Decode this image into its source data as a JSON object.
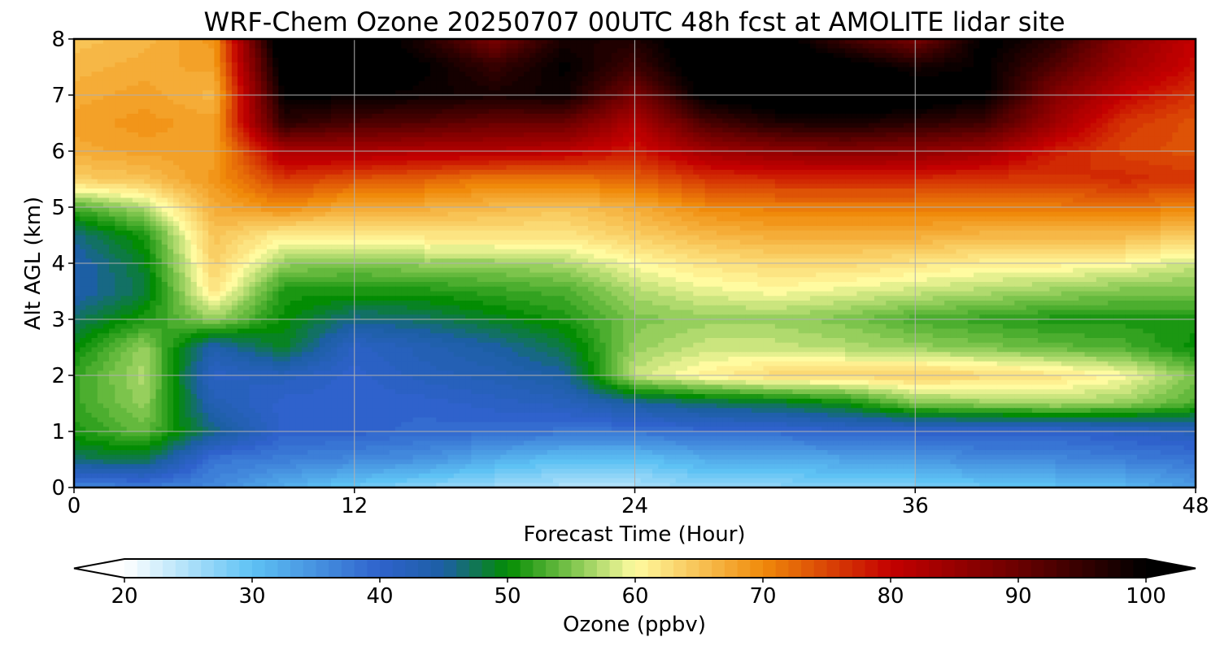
{
  "chart_data": {
    "type": "heatmap",
    "title": "WRF-Chem Ozone  20250707 00UTC 48h fcst at AMOLITE lidar site",
    "xlabel": "Forecast Time (Hour)",
    "ylabel": "Alt AGL (km)",
    "xlim": [
      0,
      48
    ],
    "ylim": [
      0,
      8
    ],
    "xticks": [
      "0",
      "12",
      "24",
      "36",
      "48"
    ],
    "yticks": [
      "0",
      "1",
      "2",
      "3",
      "4",
      "5",
      "6",
      "7",
      "8"
    ],
    "grid": true,
    "x": [
      0,
      3,
      6,
      9,
      12,
      15,
      18,
      21,
      24,
      27,
      30,
      33,
      36,
      39,
      42,
      45,
      48
    ],
    "y": [
      0,
      0.5,
      1,
      1.5,
      2,
      2.5,
      3,
      3.5,
      4,
      4.5,
      5,
      5.5,
      6,
      6.5,
      7,
      7.5,
      8
    ],
    "z": [
      [
        36,
        37,
        36,
        32,
        29,
        27,
        26,
        25,
        25,
        27,
        27,
        28,
        28,
        29,
        30,
        31,
        34
      ],
      [
        47,
        48,
        38,
        37,
        36,
        35,
        32,
        30,
        30,
        32,
        32,
        33,
        34,
        36,
        36,
        37,
        38
      ],
      [
        51,
        54,
        46,
        40,
        40,
        39,
        39,
        38,
        38,
        39,
        39,
        40,
        40,
        40,
        40,
        41,
        42
      ],
      [
        52,
        56,
        43,
        40,
        40,
        40,
        41,
        42,
        45,
        47,
        48,
        50,
        55,
        56,
        57,
        56,
        53
      ],
      [
        52,
        57,
        41,
        42,
        40,
        42,
        43,
        45,
        58,
        61,
        63,
        63,
        64,
        63,
        62,
        60,
        55
      ],
      [
        50,
        56,
        44,
        49,
        41,
        43,
        45,
        48,
        56,
        58,
        58,
        57,
        56,
        55,
        54,
        53,
        50
      ],
      [
        47,
        51,
        56,
        50,
        46,
        47,
        49,
        51,
        55,
        56,
        56,
        55,
        53,
        52,
        51,
        51,
        51
      ],
      [
        44,
        48,
        62,
        51,
        51,
        51,
        52,
        53,
        57,
        59,
        60,
        59,
        58,
        57,
        56,
        55,
        55
      ],
      [
        44,
        49,
        64,
        56,
        55,
        56,
        56,
        57,
        60,
        62,
        63,
        63,
        62,
        61,
        61,
        60,
        58
      ],
      [
        46,
        51,
        65,
        61,
        61,
        62,
        62,
        62,
        64,
        66,
        67,
        67,
        67,
        66,
        66,
        66,
        64
      ],
      [
        53,
        57,
        67,
        70,
        67,
        67,
        66,
        65,
        67,
        70,
        71,
        71,
        71,
        71,
        71,
        72,
        70
      ],
      [
        64,
        65,
        69,
        76,
        74,
        73,
        71,
        71,
        73,
        76,
        77,
        77,
        77,
        76,
        76,
        77,
        76
      ],
      [
        67,
        68,
        68,
        83,
        83,
        82,
        82,
        81,
        78,
        84,
        86,
        87,
        86,
        84,
        78,
        75,
        74
      ],
      [
        68,
        69,
        68,
        96,
        93,
        92,
        90,
        90,
        82,
        93,
        97,
        98,
        96,
        94,
        84,
        76,
        74
      ],
      [
        67,
        68,
        66,
        100,
        100,
        99,
        98,
        99,
        88,
        101,
        103,
        104,
        103,
        100,
        87,
        80,
        76
      ],
      [
        66,
        67,
        68,
        103,
        102,
        100,
        95,
        100,
        94,
        103,
        104,
        102,
        98,
        100,
        92,
        84,
        79
      ],
      [
        65,
        66,
        69,
        106,
        104,
        97,
        88,
        98,
        97,
        104,
        102,
        94,
        88,
        101,
        96,
        86,
        80
      ]
    ],
    "colorbar": {
      "label": "Ozone  (ppbv)",
      "min": 20,
      "max": 100,
      "ticks": [
        "20",
        "30",
        "40",
        "50",
        "60",
        "70",
        "80",
        "90",
        "100"
      ],
      "extend": "both",
      "anchors": [
        [
          20,
          "#ffffff"
        ],
        [
          30,
          "#5ec2f4"
        ],
        [
          40,
          "#2f62cc"
        ],
        [
          45,
          "#1c5fa4"
        ],
        [
          50,
          "#038c03"
        ],
        [
          55,
          "#7cc44c"
        ],
        [
          60,
          "#fffba0"
        ],
        [
          70,
          "#f08a0a"
        ],
        [
          80,
          "#c40000"
        ],
        [
          90,
          "#6a0000"
        ],
        [
          100,
          "#000000"
        ]
      ]
    }
  }
}
